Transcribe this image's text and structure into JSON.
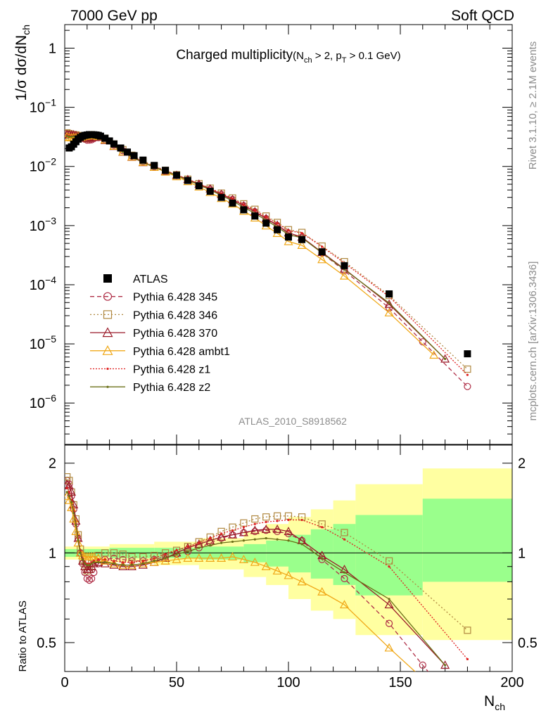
{
  "header": {
    "energy_label": "7000 GeV pp",
    "category_label": "Soft QCD"
  },
  "side_labels": {
    "rivet": "Rivet 3.1.10, ≥ 2.1M events",
    "mcplots": "mcplots.cern.ch [arXiv:1306.3436]"
  },
  "chart_data": {
    "type": "line",
    "title_main": "Charged multiplicity",
    "title_cuts": [
      "(N",
      "ch",
      " > 2, p",
      "T",
      " > 0.1 GeV)"
    ],
    "analysis_id": "ATLAS_2010_S8918562",
    "xlabel": {
      "main": "N",
      "sub": "ch"
    },
    "ylabel_top": {
      "p1": "1/σ dσ/dN",
      "sub": "ch"
    },
    "ylabel_ratio": "Ratio to ATLAS",
    "xlim": [
      0,
      200
    ],
    "ylim_top": [
      2e-07,
      2.5
    ],
    "ylim_ratio": [
      0.4,
      2.3
    ],
    "x_ticks": [
      0,
      50,
      100,
      150,
      200
    ],
    "x_tick_labels": [
      "0",
      "50",
      "100",
      "150",
      "200"
    ],
    "y_top_ticks": [
      {
        "value": 1e-06,
        "base": "10",
        "exp": "−6"
      },
      {
        "value": 1e-05,
        "base": "10",
        "exp": "−5"
      },
      {
        "value": 0.0001,
        "base": "10",
        "exp": "−4"
      },
      {
        "value": 0.001,
        "base": "10",
        "exp": "−3"
      },
      {
        "value": 0.01,
        "base": "10",
        "exp": "−2"
      },
      {
        "value": 0.1,
        "base": "10",
        "exp": "−1"
      },
      {
        "value": 1,
        "base": "1",
        "exp": ""
      }
    ],
    "y_ratio_ticks": [
      {
        "value": 0.5,
        "label": "0.5"
      },
      {
        "value": 1,
        "label": "1"
      },
      {
        "value": 2,
        "label": "2"
      }
    ],
    "data": {
      "name": "ATLAS",
      "points": [
        [
          2,
          0.0205
        ],
        [
          3,
          0.0215
        ],
        [
          4,
          0.0238
        ],
        [
          5,
          0.0262
        ],
        [
          6,
          0.029
        ],
        [
          7,
          0.031
        ],
        [
          8,
          0.0325
        ],
        [
          9,
          0.0335
        ],
        [
          10,
          0.034
        ],
        [
          11,
          0.0345
        ],
        [
          12,
          0.0345
        ],
        [
          13,
          0.0343
        ],
        [
          14,
          0.034
        ],
        [
          15,
          0.0335
        ],
        [
          16,
          0.0325
        ],
        [
          18,
          0.03
        ],
        [
          20,
          0.027
        ],
        [
          22,
          0.024
        ],
        [
          25,
          0.0205
        ],
        [
          28,
          0.0175
        ],
        [
          31,
          0.0152
        ],
        [
          35,
          0.0128
        ],
        [
          40,
          0.0104
        ],
        [
          45,
          0.0086
        ],
        [
          50,
          0.0071
        ],
        [
          55,
          0.0058
        ],
        [
          60,
          0.0047
        ],
        [
          65,
          0.0038
        ],
        [
          70,
          0.003
        ],
        [
          75,
          0.0024
        ],
        [
          80,
          0.00185
        ],
        [
          85,
          0.00145
        ],
        [
          90,
          0.0011
        ],
        [
          95,
          0.00085
        ],
        [
          100,
          0.00064
        ],
        [
          106,
          0.00058
        ],
        [
          115,
          0.00036
        ],
        [
          125,
          0.00021
        ],
        [
          145,
          7e-05
        ],
        [
          180,
          6.8e-06
        ]
      ]
    },
    "ratio_band_edges": [
      0,
      5,
      10,
      20,
      40,
      60,
      80,
      90,
      100,
      110,
      120,
      130,
      160,
      200
    ],
    "ratio_band_stat": [
      [
        0.97,
        1.03
      ],
      [
        0.97,
        1.03
      ],
      [
        0.97,
        1.03
      ],
      [
        0.96,
        1.04
      ],
      [
        0.96,
        1.04
      ],
      [
        0.95,
        1.05
      ],
      [
        0.93,
        1.07
      ],
      [
        0.9,
        1.1
      ],
      [
        0.86,
        1.15
      ],
      [
        0.82,
        1.2
      ],
      [
        0.78,
        1.25
      ],
      [
        0.72,
        1.34
      ],
      [
        0.8,
        1.52
      ]
    ],
    "ratio_band_tot": [
      [
        0.95,
        1.05
      ],
      [
        0.95,
        1.05
      ],
      [
        0.95,
        1.05
      ],
      [
        0.93,
        1.07
      ],
      [
        0.91,
        1.09
      ],
      [
        0.88,
        1.12
      ],
      [
        0.83,
        1.18
      ],
      [
        0.78,
        1.25
      ],
      [
        0.7,
        1.32
      ],
      [
        0.64,
        1.4
      ],
      [
        0.6,
        1.5
      ],
      [
        0.53,
        1.7
      ],
      [
        0.51,
        1.92
      ]
    ],
    "series": [
      {
        "name": "Pythia 6.428 345",
        "color": "#b03048",
        "marker": "circle",
        "dash": "6,4",
        "fill": "none",
        "points": [
          [
            1,
            1.75
          ],
          [
            2,
            1.7
          ],
          [
            3,
            1.55
          ],
          [
            4,
            1.4
          ],
          [
            5,
            1.25
          ],
          [
            6,
            1.12
          ],
          [
            7,
            1.0
          ],
          [
            8,
            0.92
          ],
          [
            9,
            0.86
          ],
          [
            10,
            0.82
          ],
          [
            11,
            0.81
          ],
          [
            12,
            0.82
          ],
          [
            13,
            0.86
          ],
          [
            15,
            0.92
          ],
          [
            18,
            0.95
          ],
          [
            22,
            0.96
          ],
          [
            26,
            0.95
          ],
          [
            30,
            0.94
          ],
          [
            35,
            0.94
          ],
          [
            40,
            0.95
          ],
          [
            45,
            0.97
          ],
          [
            50,
            0.99
          ],
          [
            55,
            1.01
          ],
          [
            60,
            1.04
          ],
          [
            65,
            1.08
          ],
          [
            70,
            1.12
          ],
          [
            75,
            1.15
          ],
          [
            80,
            1.17
          ],
          [
            85,
            1.18
          ],
          [
            90,
            1.19
          ],
          [
            95,
            1.18
          ],
          [
            100,
            1.16
          ],
          [
            106,
            1.1
          ],
          [
            115,
            0.95
          ],
          [
            125,
            0.82
          ],
          [
            145,
            0.58
          ],
          [
            160,
            0.42
          ],
          [
            180,
            0.28
          ]
        ]
      },
      {
        "name": "Pythia 6.428 346",
        "color": "#b08840",
        "marker": "square",
        "dash": "2,3",
        "fill": "none",
        "points": [
          [
            1,
            1.8
          ],
          [
            2,
            1.75
          ],
          [
            3,
            1.6
          ],
          [
            4,
            1.45
          ],
          [
            5,
            1.3
          ],
          [
            6,
            1.15
          ],
          [
            7,
            1.03
          ],
          [
            8,
            0.95
          ],
          [
            9,
            0.9
          ],
          [
            10,
            0.87
          ],
          [
            11,
            0.88
          ],
          [
            12,
            0.92
          ],
          [
            13,
            0.95
          ],
          [
            15,
            0.98
          ],
          [
            18,
            1.0
          ],
          [
            22,
            1.0
          ],
          [
            26,
            0.99
          ],
          [
            30,
            0.97
          ],
          [
            35,
            0.97
          ],
          [
            40,
            0.98
          ],
          [
            45,
            1.0
          ],
          [
            50,
            1.02
          ],
          [
            55,
            1.05
          ],
          [
            60,
            1.09
          ],
          [
            65,
            1.13
          ],
          [
            70,
            1.18
          ],
          [
            75,
            1.22
          ],
          [
            80,
            1.26
          ],
          [
            85,
            1.3
          ],
          [
            90,
            1.32
          ],
          [
            95,
            1.33
          ],
          [
            100,
            1.33
          ],
          [
            106,
            1.32
          ],
          [
            115,
            1.25
          ],
          [
            125,
            1.17
          ],
          [
            145,
            0.94
          ],
          [
            180,
            0.55
          ]
        ]
      },
      {
        "name": "Pythia 6.428 370",
        "color": "#9a1a28",
        "marker": "triangle",
        "dash": "",
        "fill": "none",
        "points": [
          [
            1,
            1.7
          ],
          [
            2,
            1.68
          ],
          [
            3,
            1.6
          ],
          [
            4,
            1.45
          ],
          [
            5,
            1.28
          ],
          [
            6,
            1.12
          ],
          [
            7,
            1.0
          ],
          [
            8,
            0.94
          ],
          [
            9,
            0.9
          ],
          [
            10,
            0.88
          ],
          [
            11,
            0.88
          ],
          [
            12,
            0.9
          ],
          [
            13,
            0.92
          ],
          [
            15,
            0.93
          ],
          [
            18,
            0.92
          ],
          [
            22,
            0.91
          ],
          [
            26,
            0.9
          ],
          [
            30,
            0.9
          ],
          [
            35,
            0.91
          ],
          [
            40,
            0.93
          ],
          [
            45,
            0.96
          ],
          [
            50,
            1.0
          ],
          [
            55,
            1.04
          ],
          [
            60,
            1.07
          ],
          [
            65,
            1.1
          ],
          [
            70,
            1.13
          ],
          [
            75,
            1.15
          ],
          [
            80,
            1.17
          ],
          [
            85,
            1.19
          ],
          [
            90,
            1.2
          ],
          [
            95,
            1.2
          ],
          [
            100,
            1.18
          ],
          [
            106,
            1.1
          ],
          [
            115,
            0.98
          ],
          [
            125,
            0.88
          ],
          [
            145,
            0.67
          ],
          [
            170,
            0.42
          ]
        ]
      },
      {
        "name": "Pythia 6.428 ambt1",
        "color": "#f0a818",
        "marker": "triangle",
        "dash": "",
        "fill": "none",
        "points": [
          [
            1,
            1.55
          ],
          [
            2,
            1.5
          ],
          [
            3,
            1.42
          ],
          [
            4,
            1.3
          ],
          [
            5,
            1.18
          ],
          [
            6,
            1.08
          ],
          [
            7,
            1.0
          ],
          [
            8,
            0.98
          ],
          [
            9,
            0.97
          ],
          [
            10,
            0.97
          ],
          [
            11,
            0.97
          ],
          [
            12,
            0.97
          ],
          [
            13,
            0.97
          ],
          [
            15,
            0.96
          ],
          [
            18,
            0.94
          ],
          [
            22,
            0.92
          ],
          [
            26,
            0.91
          ],
          [
            30,
            0.91
          ],
          [
            35,
            0.92
          ],
          [
            40,
            0.93
          ],
          [
            45,
            0.94
          ],
          [
            50,
            0.95
          ],
          [
            55,
            0.96
          ],
          [
            60,
            0.96
          ],
          [
            65,
            0.96
          ],
          [
            70,
            0.96
          ],
          [
            75,
            0.97
          ],
          [
            80,
            0.95
          ],
          [
            85,
            0.93
          ],
          [
            90,
            0.9
          ],
          [
            95,
            0.87
          ],
          [
            100,
            0.84
          ],
          [
            106,
            0.8
          ],
          [
            115,
            0.74
          ],
          [
            125,
            0.67
          ],
          [
            145,
            0.48
          ],
          [
            165,
            0.35
          ]
        ]
      },
      {
        "name": "Pythia 6.428 z1",
        "color": "#e02020",
        "marker": "dot",
        "dash": "2,2",
        "fill": "#e02020",
        "points": [
          [
            1,
            1.65
          ],
          [
            2,
            1.6
          ],
          [
            3,
            1.5
          ],
          [
            4,
            1.38
          ],
          [
            5,
            1.25
          ],
          [
            6,
            1.12
          ],
          [
            7,
            1.02
          ],
          [
            8,
            0.96
          ],
          [
            9,
            0.93
          ],
          [
            10,
            0.92
          ],
          [
            11,
            0.92
          ],
          [
            12,
            0.93
          ],
          [
            13,
            0.94
          ],
          [
            15,
            0.95
          ],
          [
            18,
            0.95
          ],
          [
            22,
            0.94
          ],
          [
            26,
            0.93
          ],
          [
            30,
            0.93
          ],
          [
            35,
            0.94
          ],
          [
            40,
            0.96
          ],
          [
            45,
            0.99
          ],
          [
            50,
            1.02
          ],
          [
            55,
            1.05
          ],
          [
            60,
            1.08
          ],
          [
            65,
            1.12
          ],
          [
            70,
            1.16
          ],
          [
            75,
            1.19
          ],
          [
            80,
            1.22
          ],
          [
            85,
            1.25
          ],
          [
            90,
            1.27
          ],
          [
            95,
            1.28
          ],
          [
            100,
            1.29
          ],
          [
            106,
            1.29
          ],
          [
            115,
            1.22
          ],
          [
            125,
            1.11
          ],
          [
            145,
            0.9
          ],
          [
            180,
            0.44
          ]
        ]
      },
      {
        "name": "Pythia 6.428 z2",
        "color": "#6b7018",
        "marker": "dot",
        "dash": "",
        "fill": "#6b7018",
        "points": [
          [
            1,
            1.6
          ],
          [
            2,
            1.55
          ],
          [
            3,
            1.48
          ],
          [
            4,
            1.36
          ],
          [
            5,
            1.24
          ],
          [
            6,
            1.1
          ],
          [
            7,
            1.0
          ],
          [
            8,
            0.95
          ],
          [
            9,
            0.92
          ],
          [
            10,
            0.91
          ],
          [
            11,
            0.91
          ],
          [
            12,
            0.92
          ],
          [
            13,
            0.93
          ],
          [
            15,
            0.93
          ],
          [
            18,
            0.93
          ],
          [
            22,
            0.92
          ],
          [
            26,
            0.91
          ],
          [
            30,
            0.91
          ],
          [
            35,
            0.92
          ],
          [
            40,
            0.94
          ],
          [
            45,
            0.96
          ],
          [
            50,
            0.99
          ],
          [
            55,
            1.01
          ],
          [
            60,
            1.04
          ],
          [
            65,
            1.06
          ],
          [
            70,
            1.08
          ],
          [
            75,
            1.09
          ],
          [
            80,
            1.1
          ],
          [
            85,
            1.11
          ],
          [
            90,
            1.12
          ],
          [
            95,
            1.11
          ],
          [
            100,
            1.1
          ],
          [
            106,
            1.07
          ],
          [
            115,
            0.96
          ],
          [
            125,
            0.86
          ],
          [
            145,
            0.7
          ],
          [
            170,
            0.42
          ]
        ]
      }
    ]
  }
}
